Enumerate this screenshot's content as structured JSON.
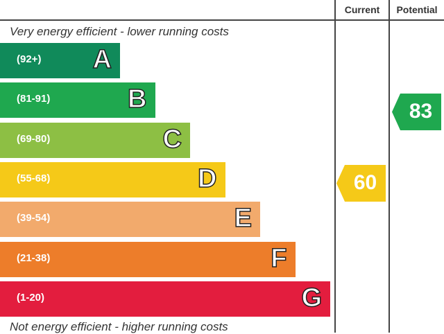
{
  "chart_data": {
    "type": "bar",
    "title": "",
    "columns": [
      "Current",
      "Potential"
    ],
    "top_caption": "Very energy efficient - lower running costs",
    "bottom_caption": "Not energy efficient - higher running costs",
    "bands": [
      {
        "letter": "A",
        "range": "(92+)",
        "color": "#108a5a"
      },
      {
        "letter": "B",
        "range": "(81-91)",
        "color": "#1fa84f"
      },
      {
        "letter": "C",
        "range": "(69-80)",
        "color": "#8dbf44"
      },
      {
        "letter": "D",
        "range": "(55-68)",
        "color": "#f5c918"
      },
      {
        "letter": "E",
        "range": "(39-54)",
        "color": "#f2aa6c"
      },
      {
        "letter": "F",
        "range": "(21-38)",
        "color": "#ed7d2a"
      },
      {
        "letter": "G",
        "range": "(1-20)",
        "color": "#e31d3e"
      }
    ],
    "current": {
      "value": "60",
      "band": "D",
      "color": "#f5c918"
    },
    "potential": {
      "value": "83",
      "band": "B",
      "color": "#1fa84f"
    }
  }
}
